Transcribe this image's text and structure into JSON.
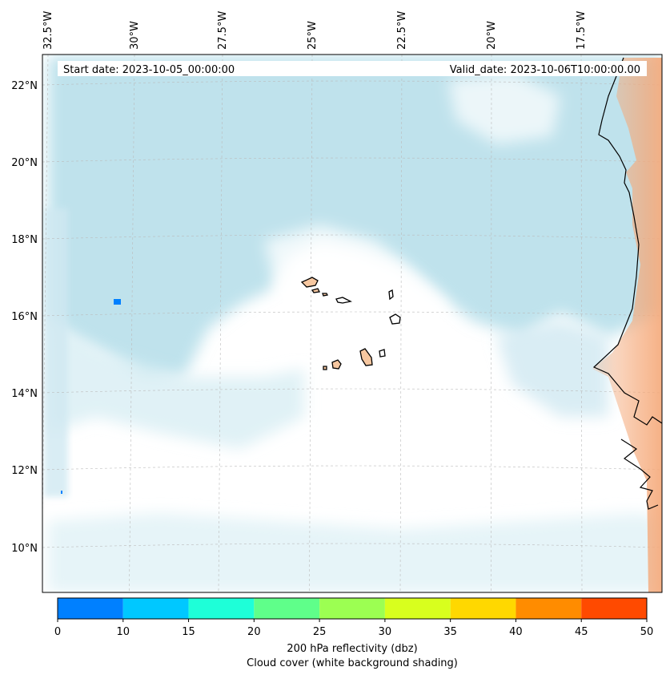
{
  "map": {
    "start_date_label": "Start date: 2023-10-05_00:00:00",
    "valid_date_label": "Valid_date: 2023-10-06T10:00:00.00",
    "lon_ticks": [
      "32.5°W",
      "30°W",
      "27.5°W",
      "25°W",
      "22.5°W",
      "20°W",
      "17.5°W"
    ],
    "lat_ticks": [
      "22°N",
      "20°N",
      "18°N",
      "16°N",
      "14°N",
      "12°N",
      "10°N"
    ],
    "colors": {
      "cloud": "#a9d8e6",
      "land_shading": "#f5a878",
      "island_fill": "#f6c7a0",
      "coastline": "#000000",
      "gridline": "#bbbbbb",
      "frame": "#000000"
    }
  },
  "colorbar": {
    "label_line1": "200 hPa reflectivity (dbz)",
    "label_line2": "Cloud cover (white background shading)",
    "ticks": [
      "0",
      "10",
      "15",
      "20",
      "25",
      "30",
      "35",
      "40",
      "45",
      "50"
    ],
    "bins": [
      {
        "from": 0,
        "to": 10,
        "color": "#0080ff"
      },
      {
        "from": 10,
        "to": 15,
        "color": "#00c8ff"
      },
      {
        "from": 15,
        "to": 20,
        "color": "#1effd8"
      },
      {
        "from": 20,
        "to": 25,
        "color": "#5fff8a"
      },
      {
        "from": 25,
        "to": 30,
        "color": "#9cff52"
      },
      {
        "from": 30,
        "to": 35,
        "color": "#d8ff1e"
      },
      {
        "from": 35,
        "to": 40,
        "color": "#ffd800"
      },
      {
        "from": 40,
        "to": 45,
        "color": "#ff8c00"
      },
      {
        "from": 45,
        "to": 50,
        "color": "#ff4a00"
      }
    ]
  }
}
